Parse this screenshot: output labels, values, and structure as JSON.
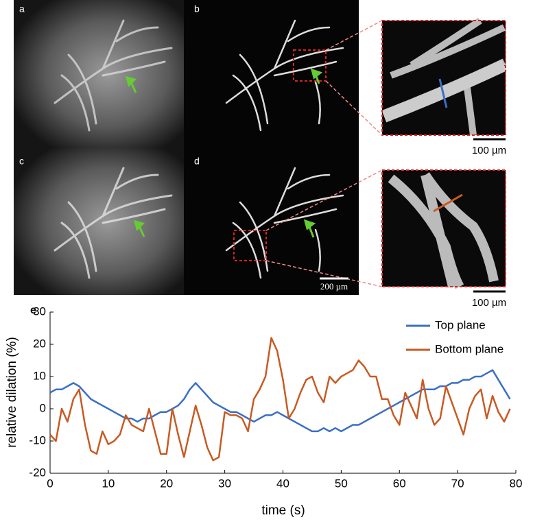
{
  "panels": {
    "labels": [
      "a",
      "b",
      "c",
      "d",
      "e"
    ],
    "scale_bars": [
      "100 µm",
      "100 µm",
      "200 µm"
    ]
  },
  "chart_data": {
    "type": "line",
    "x_label": "time (s)",
    "y_label": "relative dilation (%)",
    "x": [
      0,
      1,
      2,
      3,
      4,
      5,
      6,
      7,
      8,
      9,
      10,
      11,
      12,
      13,
      14,
      15,
      16,
      17,
      18,
      19,
      20,
      21,
      22,
      23,
      24,
      25,
      26,
      27,
      28,
      29,
      30,
      31,
      32,
      33,
      34,
      35,
      36,
      37,
      38,
      39,
      40,
      41,
      42,
      43,
      44,
      45,
      46,
      47,
      48,
      49,
      50,
      51,
      52,
      53,
      54,
      55,
      56,
      57,
      58,
      59,
      60,
      61,
      62,
      63,
      64,
      65,
      66,
      67,
      68,
      69,
      70,
      71,
      72,
      73,
      74,
      75,
      76,
      77,
      78,
      79
    ],
    "series": [
      {
        "name": "Top plane",
        "color": "#3a6fc4",
        "values": [
          5,
          6,
          6,
          7,
          8,
          7,
          5,
          3,
          2,
          1,
          0,
          -1,
          -2,
          -3,
          -3,
          -4,
          -3,
          -3,
          -2,
          -1,
          -1,
          0,
          1,
          3,
          6,
          8,
          6,
          4,
          2,
          1,
          0,
          -1,
          -1,
          -2,
          -3,
          -4,
          -3,
          -2,
          -2,
          -1,
          -2,
          -3,
          -4,
          -5,
          -6,
          -7,
          -7,
          -6,
          -7,
          -6,
          -7,
          -6,
          -5,
          -5,
          -4,
          -3,
          -2,
          -1,
          0,
          1,
          2,
          3,
          4,
          5,
          6,
          6,
          6,
          7,
          7,
          8,
          8,
          9,
          9,
          10,
          10,
          11,
          12,
          9,
          6,
          3
        ]
      },
      {
        "name": "Bottom plane",
        "color": "#c85a22",
        "values": [
          -8,
          -10,
          0,
          -4,
          3,
          6,
          -5,
          -13,
          -14,
          -7,
          -11,
          -10,
          -8,
          -2,
          -5,
          -6,
          -7,
          0,
          -7,
          -14,
          -14,
          0,
          -8,
          -15,
          -7,
          1,
          -5,
          -12,
          -16,
          -15,
          -1,
          -2,
          -2,
          -3,
          -7,
          3,
          6,
          10,
          22,
          18,
          9,
          -3,
          0,
          5,
          9,
          10,
          5,
          2,
          10,
          8,
          10,
          11,
          12,
          15,
          13,
          10,
          10,
          3,
          3,
          -2,
          -5,
          5,
          1,
          -3,
          9,
          0,
          -5,
          -3,
          7,
          2,
          -3,
          -8,
          0,
          4,
          6,
          -3,
          4,
          -1,
          -4,
          0
        ]
      }
    ],
    "xlim": [
      0,
      80
    ],
    "xticks": [
      0,
      10,
      20,
      30,
      40,
      50,
      60,
      70,
      80
    ],
    "ylim": [
      -20,
      30
    ],
    "yticks": [
      -20,
      -10,
      0,
      10,
      20,
      30
    ],
    "legend": "upper-right"
  }
}
